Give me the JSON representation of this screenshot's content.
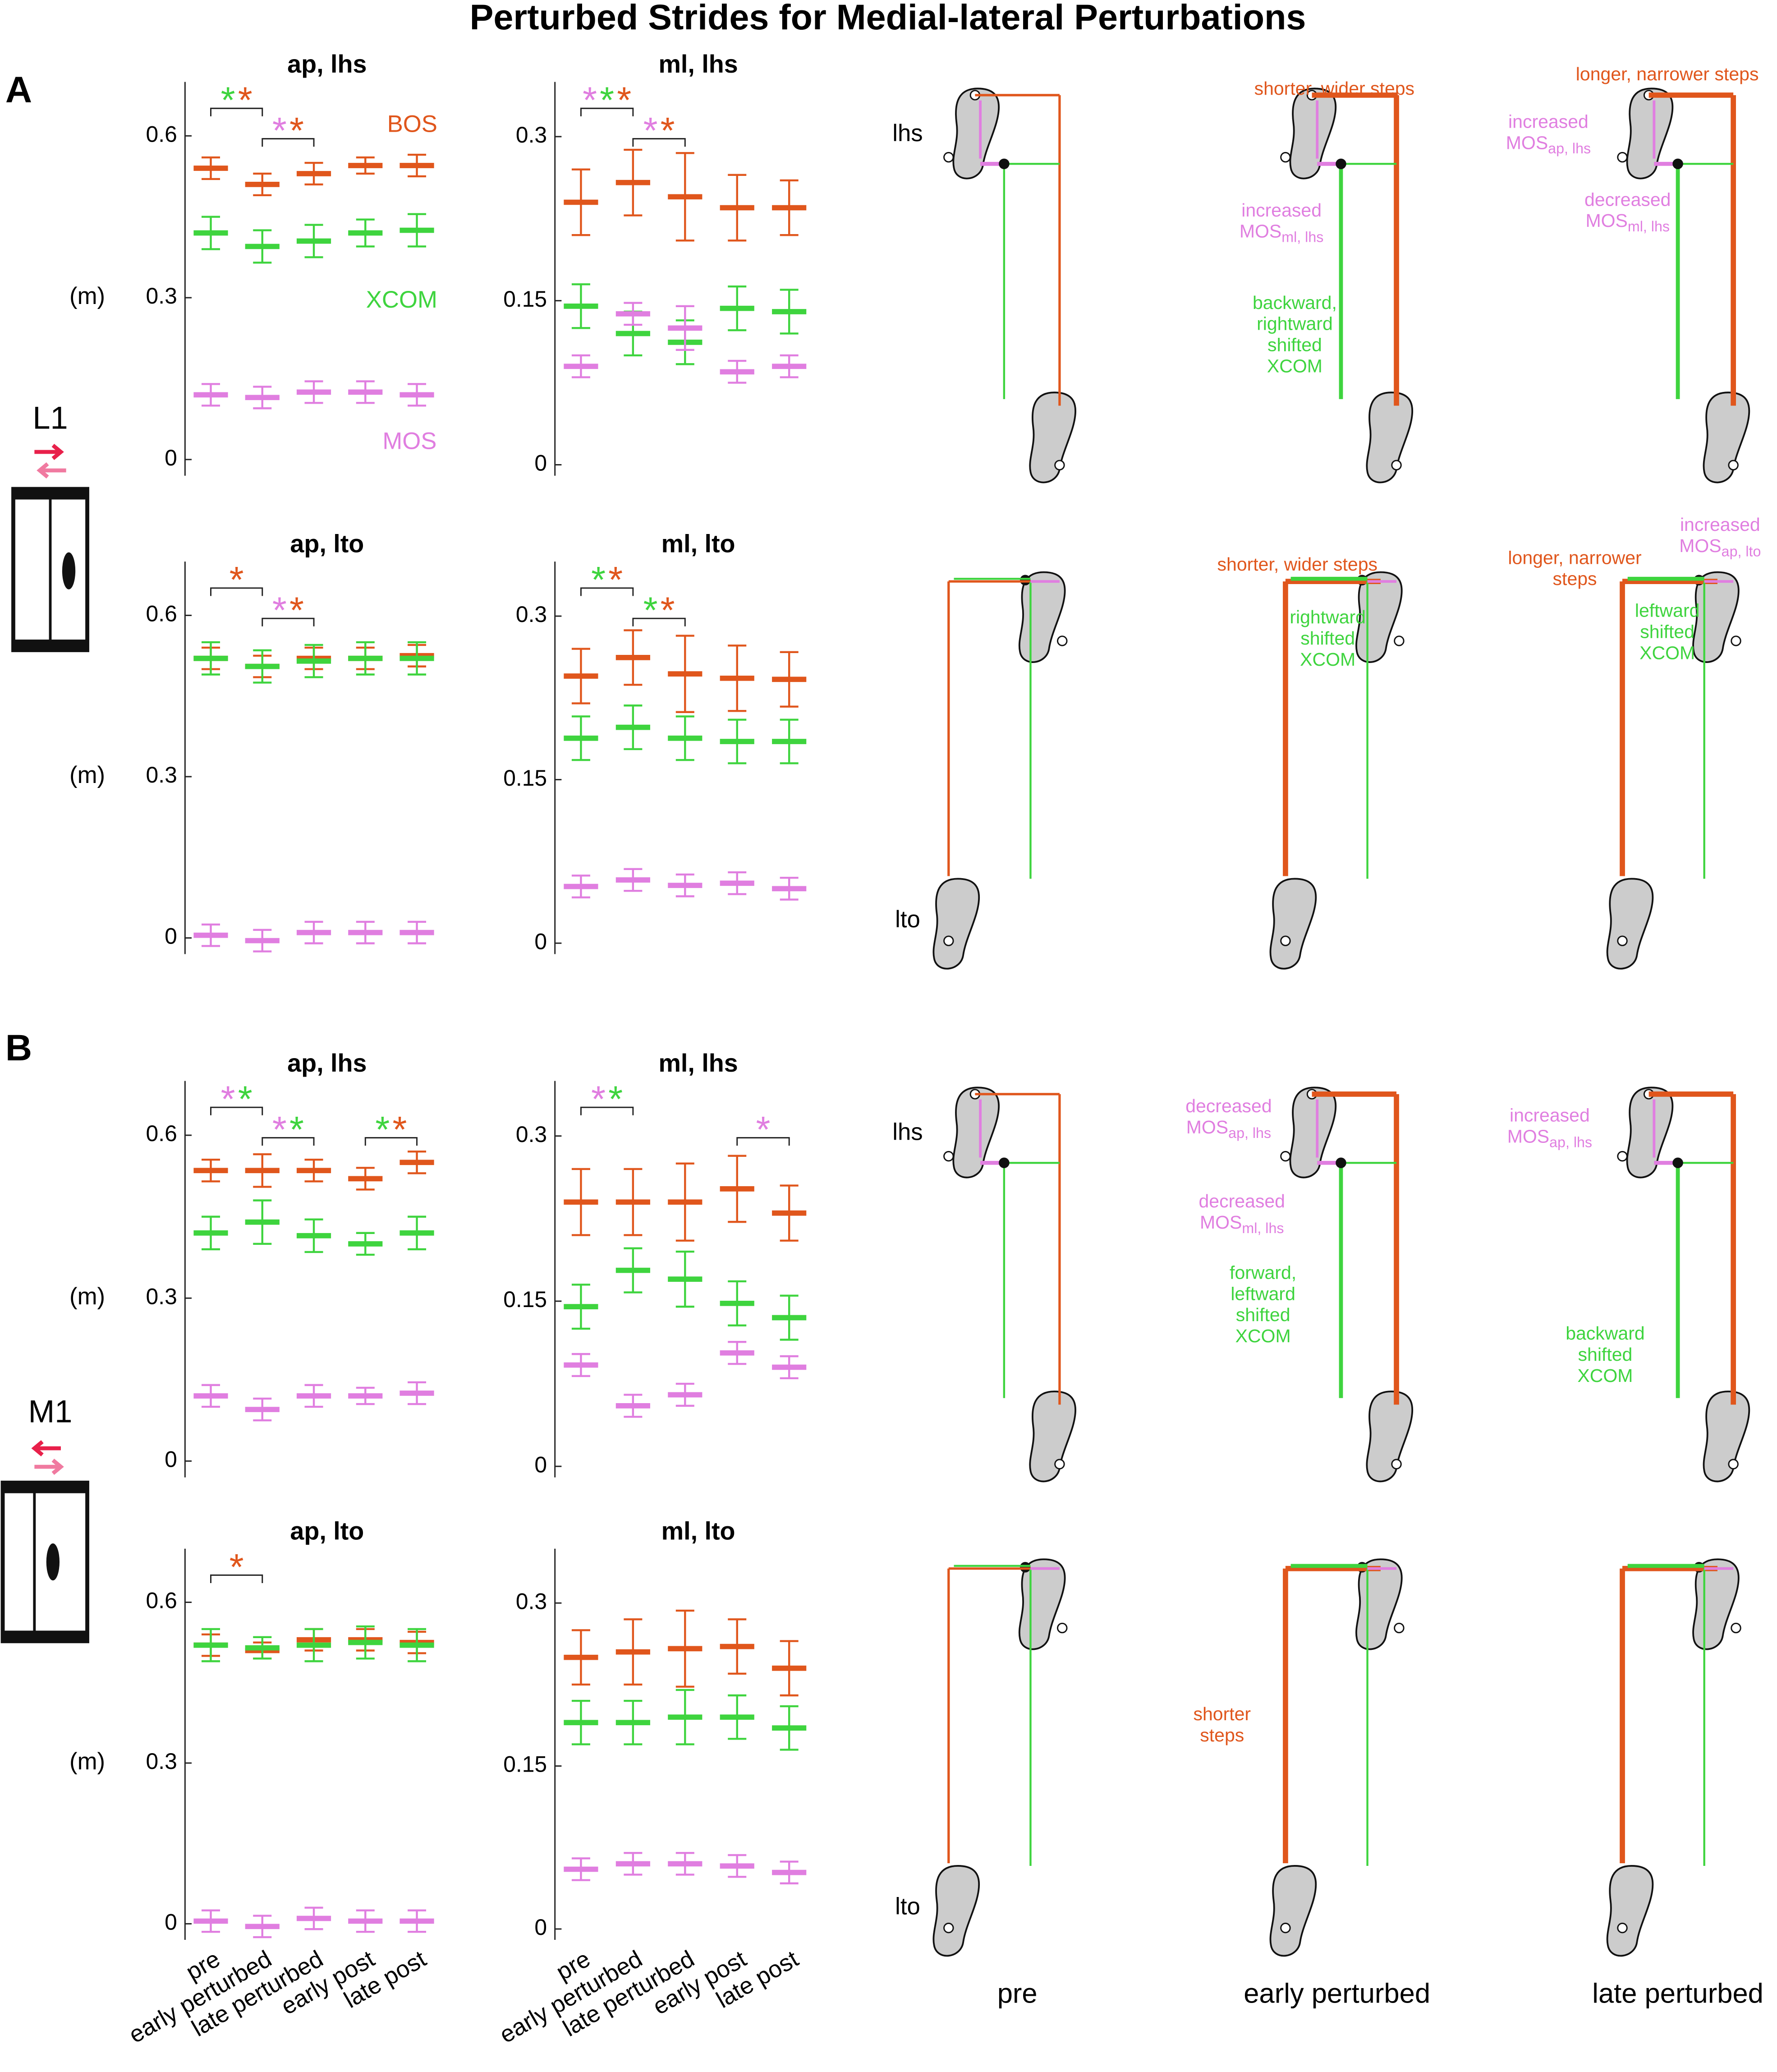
{
  "title": "Perturbed Strides for Medial-lateral Perturbations",
  "panel_letters": [
    "A",
    "B"
  ],
  "conditions": [
    "L1",
    "M1"
  ],
  "star": "*",
  "chart_data": [
    {
      "type": "errorbar",
      "title": "ap, lhs",
      "ylabel": "(m)",
      "ylim": [
        -0.03,
        0.7
      ],
      "yticks": [
        0,
        0.3,
        0.6
      ],
      "sig": [
        {
          "span": [
            0,
            1
          ],
          "colors": [
            "#3ed43e",
            "#e0561c"
          ]
        },
        {
          "span": [
            1,
            2
          ],
          "colors": [
            "#e07ee0",
            "#e0561c"
          ]
        }
      ],
      "series": [
        {
          "name": "BOS",
          "color": "#e0561c",
          "values": [
            0.54,
            0.51,
            0.53,
            0.545,
            0.545
          ],
          "errors": [
            0.02,
            0.02,
            0.02,
            0.015,
            0.02
          ]
        },
        {
          "name": "XCOM",
          "color": "#3ed43e",
          "values": [
            0.42,
            0.395,
            0.405,
            0.42,
            0.425
          ],
          "errors": [
            0.03,
            0.03,
            0.03,
            0.025,
            0.03
          ]
        },
        {
          "name": "MOS",
          "color": "#e07ee0",
          "values": [
            0.12,
            0.115,
            0.125,
            0.125,
            0.12
          ],
          "errors": [
            0.02,
            0.02,
            0.02,
            0.02,
            0.02
          ]
        }
      ]
    },
    {
      "type": "errorbar",
      "title": "ml, lhs",
      "ylim": [
        -0.01,
        0.35
      ],
      "yticks": [
        0,
        0.15,
        0.3
      ],
      "sig": [
        {
          "span": [
            0,
            1
          ],
          "colors": [
            "#e07ee0",
            "#3ed43e",
            "#e0561c"
          ]
        },
        {
          "span": [
            1,
            2
          ],
          "colors": [
            "#e07ee0",
            "#e0561c"
          ]
        }
      ],
      "series": [
        {
          "color": "#e0561c",
          "values": [
            0.24,
            0.258,
            0.245,
            0.235,
            0.235
          ],
          "errors": [
            0.03,
            0.03,
            0.04,
            0.03,
            0.025
          ]
        },
        {
          "color": "#3ed43e",
          "values": [
            0.145,
            0.12,
            0.112,
            0.143,
            0.14
          ],
          "errors": [
            0.02,
            0.02,
            0.02,
            0.02,
            0.02
          ]
        },
        {
          "color": "#e07ee0",
          "values": [
            0.09,
            0.138,
            0.125,
            0.085,
            0.09
          ],
          "errors": [
            0.01,
            0.01,
            0.02,
            0.01,
            0.01
          ]
        }
      ]
    },
    {
      "type": "errorbar",
      "title": "ap, lto",
      "ylabel": "(m)",
      "ylim": [
        -0.03,
        0.7
      ],
      "yticks": [
        0,
        0.3,
        0.6
      ],
      "sig": [
        {
          "span": [
            0,
            1
          ],
          "colors": [
            "#e0561c"
          ]
        },
        {
          "span": [
            1,
            2
          ],
          "colors": [
            "#e07ee0",
            "#e0561c"
          ]
        }
      ],
      "series": [
        {
          "color": "#e0561c",
          "values": [
            0.52,
            0.505,
            0.52,
            0.52,
            0.525
          ],
          "errors": [
            0.02,
            0.02,
            0.02,
            0.02,
            0.02
          ]
        },
        {
          "color": "#3ed43e",
          "values": [
            0.52,
            0.505,
            0.515,
            0.52,
            0.52
          ],
          "errors": [
            0.03,
            0.03,
            0.03,
            0.03,
            0.03
          ]
        },
        {
          "color": "#e07ee0",
          "values": [
            0.005,
            -0.005,
            0.01,
            0.01,
            0.01
          ],
          "errors": [
            0.02,
            0.02,
            0.02,
            0.02,
            0.02
          ]
        }
      ]
    },
    {
      "type": "errorbar",
      "title": "ml, lto",
      "ylim": [
        -0.01,
        0.35
      ],
      "yticks": [
        0,
        0.15,
        0.3
      ],
      "sig": [
        {
          "span": [
            0,
            1
          ],
          "colors": [
            "#3ed43e",
            "#e0561c"
          ]
        },
        {
          "span": [
            1,
            2
          ],
          "colors": [
            "#3ed43e",
            "#e0561c"
          ]
        }
      ],
      "series": [
        {
          "color": "#e0561c",
          "values": [
            0.245,
            0.262,
            0.247,
            0.243,
            0.242
          ],
          "errors": [
            0.025,
            0.025,
            0.035,
            0.03,
            0.025
          ]
        },
        {
          "color": "#3ed43e",
          "values": [
            0.188,
            0.198,
            0.188,
            0.185,
            0.185
          ],
          "errors": [
            0.02,
            0.02,
            0.02,
            0.02,
            0.02
          ]
        },
        {
          "color": "#e07ee0",
          "values": [
            0.052,
            0.058,
            0.053,
            0.055,
            0.05
          ],
          "errors": [
            0.01,
            0.01,
            0.01,
            0.01,
            0.01
          ]
        }
      ]
    },
    {
      "type": "errorbar",
      "title": "ap, lhs",
      "ylabel": "(m)",
      "ylim": [
        -0.03,
        0.7
      ],
      "yticks": [
        0,
        0.3,
        0.6
      ],
      "sig": [
        {
          "span": [
            0,
            1
          ],
          "colors": [
            "#e07ee0",
            "#3ed43e"
          ]
        },
        {
          "span": [
            1,
            2
          ],
          "colors": [
            "#e07ee0",
            "#3ed43e"
          ]
        },
        {
          "span": [
            3,
            4
          ],
          "colors": [
            "#3ed43e",
            "#e0561c"
          ]
        }
      ],
      "series": [
        {
          "color": "#e0561c",
          "values": [
            0.535,
            0.535,
            0.535,
            0.52,
            0.55
          ],
          "errors": [
            0.02,
            0.03,
            0.02,
            0.02,
            0.02
          ]
        },
        {
          "color": "#3ed43e",
          "values": [
            0.42,
            0.44,
            0.415,
            0.4,
            0.42
          ],
          "errors": [
            0.03,
            0.04,
            0.03,
            0.02,
            0.03
          ]
        },
        {
          "color": "#e07ee0",
          "values": [
            0.12,
            0.095,
            0.12,
            0.12,
            0.125
          ],
          "errors": [
            0.02,
            0.02,
            0.02,
            0.015,
            0.02
          ]
        }
      ]
    },
    {
      "type": "errorbar",
      "title": "ml, lhs",
      "ylim": [
        -0.01,
        0.35
      ],
      "yticks": [
        0,
        0.15,
        0.3
      ],
      "sig": [
        {
          "span": [
            0,
            1
          ],
          "colors": [
            "#e07ee0",
            "#3ed43e"
          ]
        },
        {
          "span": [
            3,
            4
          ],
          "colors": [
            "#e07ee0"
          ]
        }
      ],
      "series": [
        {
          "color": "#e0561c",
          "values": [
            0.24,
            0.24,
            0.24,
            0.252,
            0.23
          ],
          "errors": [
            0.03,
            0.03,
            0.035,
            0.03,
            0.025
          ]
        },
        {
          "color": "#3ed43e",
          "values": [
            0.145,
            0.178,
            0.17,
            0.148,
            0.135
          ],
          "errors": [
            0.02,
            0.02,
            0.025,
            0.02,
            0.02
          ]
        },
        {
          "color": "#e07ee0",
          "values": [
            0.092,
            0.055,
            0.065,
            0.103,
            0.09
          ],
          "errors": [
            0.01,
            0.01,
            0.01,
            0.01,
            0.01
          ]
        }
      ]
    },
    {
      "type": "errorbar",
      "title": "ap, lto",
      "ylabel": "(m)",
      "ylim": [
        -0.03,
        0.7
      ],
      "yticks": [
        0,
        0.3,
        0.6
      ],
      "categories": [
        "pre",
        "early perturbed",
        "late perturbed",
        "early post",
        "late post"
      ],
      "sig": [
        {
          "span": [
            0,
            1
          ],
          "colors": [
            "#e0561c"
          ]
        }
      ],
      "series": [
        {
          "color": "#e0561c",
          "values": [
            0.52,
            0.51,
            0.53,
            0.53,
            0.525
          ],
          "errors": [
            0.02,
            0.015,
            0.02,
            0.02,
            0.02
          ]
        },
        {
          "color": "#3ed43e",
          "values": [
            0.52,
            0.515,
            0.52,
            0.525,
            0.52
          ],
          "errors": [
            0.03,
            0.02,
            0.03,
            0.03,
            0.03
          ]
        },
        {
          "color": "#e07ee0",
          "values": [
            0.005,
            -0.005,
            0.01,
            0.005,
            0.005
          ],
          "errors": [
            0.02,
            0.02,
            0.02,
            0.02,
            0.02
          ]
        }
      ]
    },
    {
      "type": "errorbar",
      "title": "ml, lto",
      "ylim": [
        -0.01,
        0.35
      ],
      "yticks": [
        0,
        0.15,
        0.3
      ],
      "categories": [
        "pre",
        "early perturbed",
        "late perturbed",
        "early post",
        "late post"
      ],
      "sig": [],
      "series": [
        {
          "color": "#e0561c",
          "values": [
            0.25,
            0.255,
            0.258,
            0.26,
            0.24
          ],
          "errors": [
            0.025,
            0.03,
            0.035,
            0.025,
            0.025
          ]
        },
        {
          "color": "#3ed43e",
          "values": [
            0.19,
            0.19,
            0.195,
            0.195,
            0.185
          ],
          "errors": [
            0.02,
            0.02,
            0.025,
            0.02,
            0.02
          ]
        },
        {
          "color": "#e07ee0",
          "values": [
            0.055,
            0.06,
            0.06,
            0.058,
            0.052
          ],
          "errors": [
            0.01,
            0.01,
            0.01,
            0.01,
            0.01
          ]
        }
      ]
    }
  ],
  "diagrams": {
    "columns": [
      "pre",
      "early perturbed",
      "late perturbed"
    ],
    "row_labels": [
      "lhs",
      "lto",
      "lhs",
      "lto"
    ],
    "notes": [
      [
        [],
        [
          {
            "lines": [
              "shorter, wider steps"
            ],
            "color": "#e0561c"
          },
          {
            "lines": [
              "increased",
              "MOS"
            ],
            "sub": "ml, lhs",
            "color": "#e07ee0"
          },
          {
            "lines": [
              "backward,",
              "rightward",
              "shifted",
              "XCOM"
            ],
            "color": "#3ed43e"
          }
        ],
        [
          {
            "lines": [
              "longer, narrower steps"
            ],
            "color": "#e0561c"
          },
          {
            "lines": [
              "increased",
              "MOS"
            ],
            "sub": "ap, lhs",
            "color": "#e07ee0"
          },
          {
            "lines": [
              "decreased",
              "MOS"
            ],
            "sub": "ml, lhs",
            "color": "#e07ee0"
          }
        ]
      ],
      [
        [],
        [
          {
            "lines": [
              "shorter, wider steps"
            ],
            "color": "#e0561c"
          },
          {
            "lines": [
              "rightward",
              "shifted",
              "XCOM"
            ],
            "color": "#3ed43e"
          }
        ],
        [
          {
            "lines": [
              "longer, narrower",
              "steps"
            ],
            "color": "#e0561c"
          },
          {
            "lines": [
              "increased",
              "MOS"
            ],
            "sub": "ap, lto",
            "color": "#e07ee0"
          },
          {
            "lines": [
              "leftward",
              "shifted",
              "XCOM"
            ],
            "color": "#3ed43e"
          }
        ]
      ],
      [
        [],
        [
          {
            "lines": [
              "decreased",
              "MOS"
            ],
            "sub": "ap, lhs",
            "color": "#e07ee0"
          },
          {
            "lines": [
              "decreased",
              "MOS"
            ],
            "sub": "ml, lhs",
            "color": "#e07ee0"
          },
          {
            "lines": [
              "forward,",
              "leftward",
              "shifted",
              "XCOM"
            ],
            "color": "#3ed43e"
          }
        ],
        [
          {
            "lines": [
              "increased",
              "MOS"
            ],
            "sub": "ap, lhs",
            "color": "#e07ee0"
          },
          {
            "lines": [
              "backward",
              "shifted",
              "XCOM"
            ],
            "color": "#3ed43e"
          }
        ]
      ],
      [
        [],
        [
          {
            "lines": [
              "shorter",
              "steps"
            ],
            "color": "#e0561c"
          }
        ],
        []
      ]
    ]
  }
}
